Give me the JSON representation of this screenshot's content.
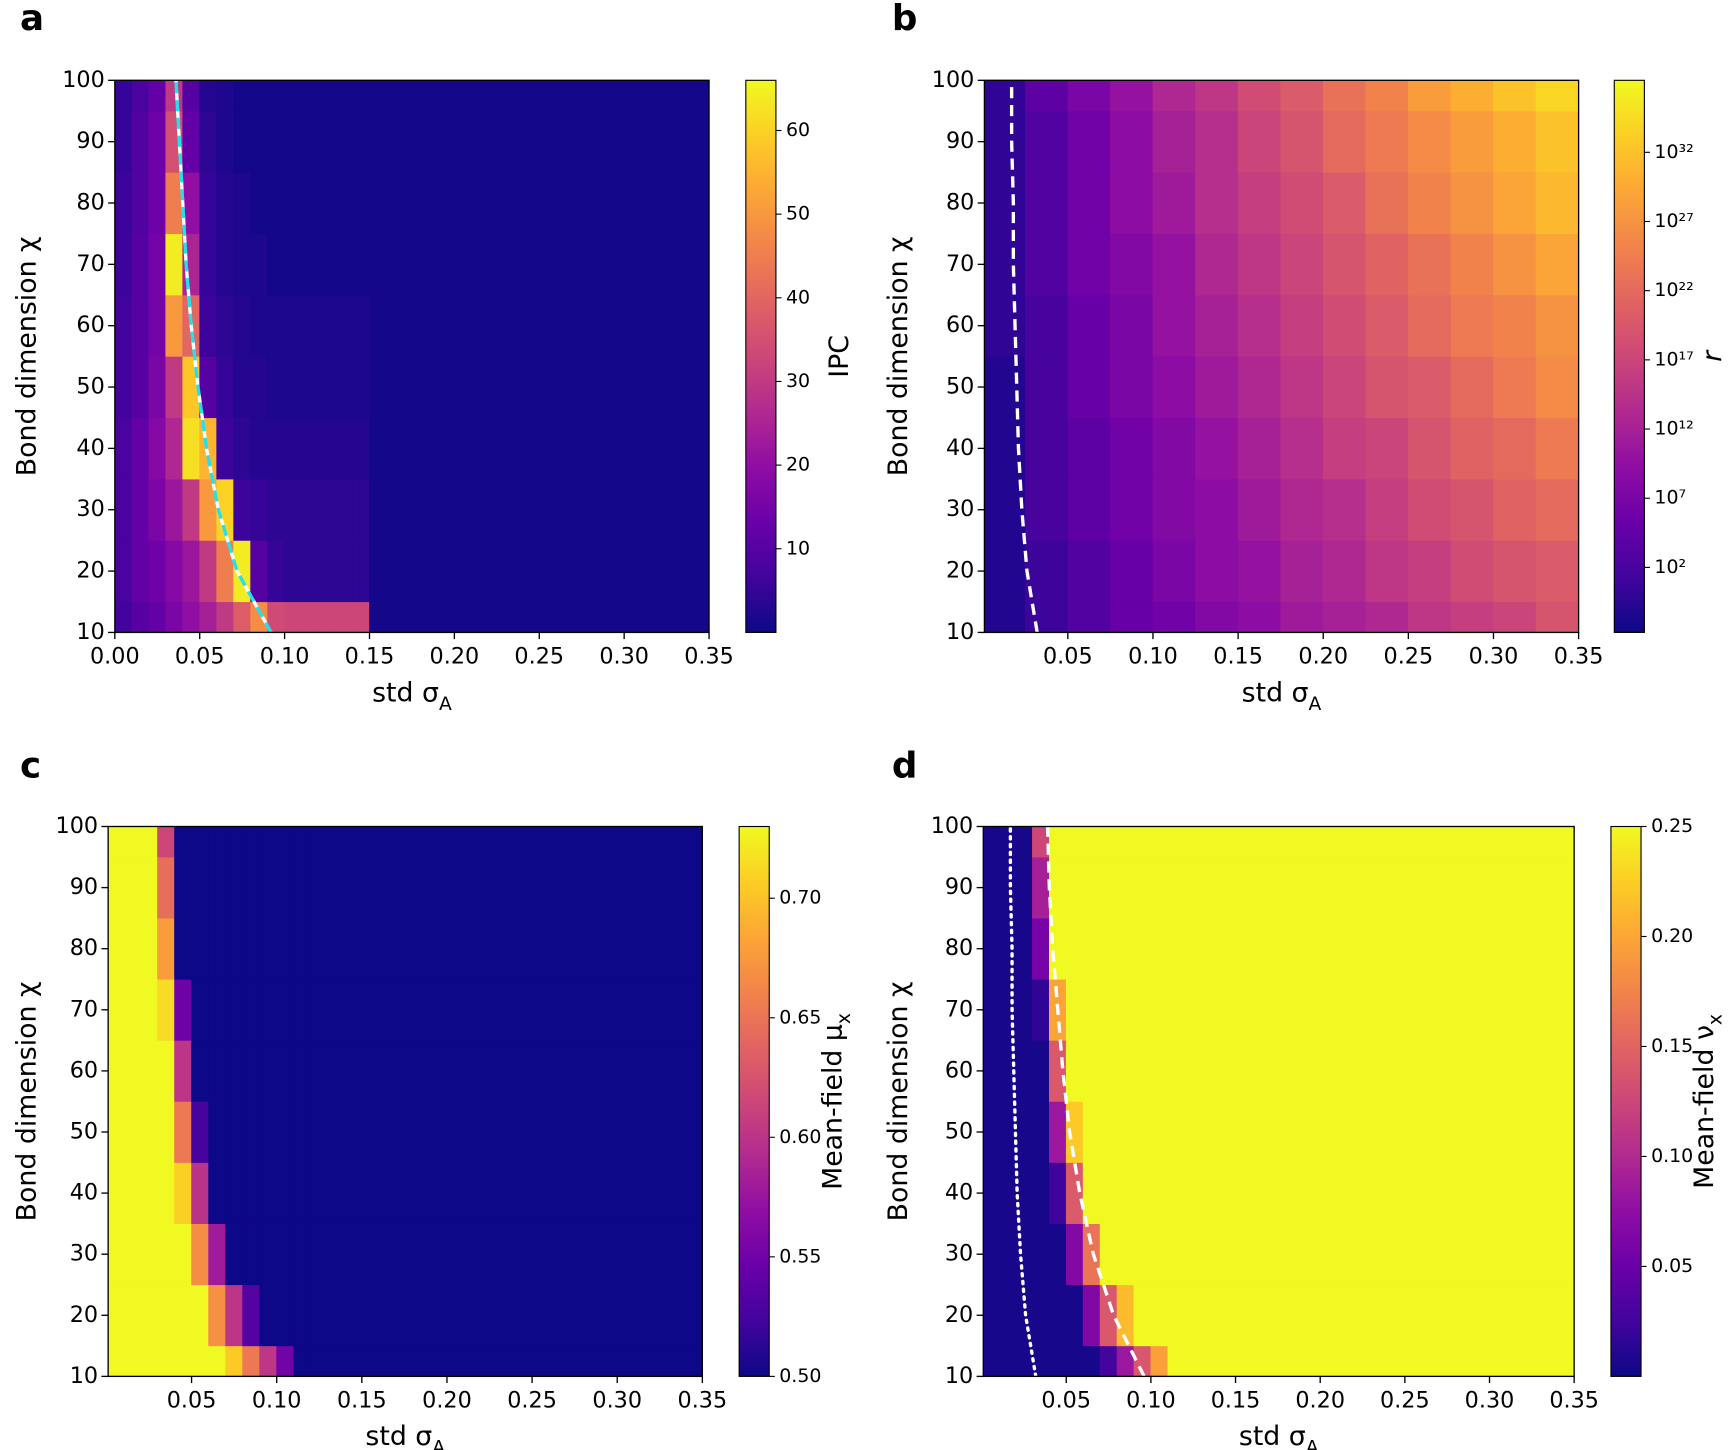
{
  "chart_data": [
    {
      "type": "heatmap",
      "panel": "a",
      "xlabel": "std σ_A",
      "ylabel": "Bond dimension χ",
      "colormap": "plasma",
      "xlim": [
        0,
        0.35
      ],
      "xticks": [
        {
          "value": 0,
          "label": "0.00"
        },
        0.05,
        {
          "value": 0.1,
          "label": "0.10"
        },
        0.15,
        {
          "value": 0.2,
          "label": "0.20"
        },
        0.25,
        {
          "value": 0.3,
          "label": "0.30"
        },
        0.35
      ],
      "ylim": [
        10,
        100
      ],
      "yticks": [
        10,
        20,
        30,
        40,
        50,
        60,
        70,
        80,
        90,
        100
      ],
      "y": [
        10,
        20,
        30,
        40,
        50,
        60,
        70,
        80,
        90,
        100
      ],
      "xbins": [
        0,
        0.01,
        0.02,
        0.03,
        0.04,
        0.05,
        0.06,
        0.07,
        0.08,
        0.09,
        0.1,
        0.11,
        0.12,
        0.13,
        0.14,
        0.15,
        0.35
      ],
      "z": [
        [
          7,
          10,
          12,
          16,
          20,
          24,
          30,
          38,
          48,
          34,
          33,
          33,
          33,
          33,
          33,
          1
        ],
        [
          8,
          12,
          14,
          18,
          22,
          30,
          45,
          64,
          10,
          5,
          4,
          4,
          4,
          4,
          4,
          1
        ],
        [
          8,
          12,
          16,
          22,
          30,
          50,
          60,
          6,
          5,
          4,
          4,
          4,
          4,
          4,
          4,
          1
        ],
        [
          8,
          12,
          18,
          26,
          62,
          55,
          6,
          4,
          3,
          3,
          3,
          3,
          3,
          3,
          3,
          1
        ],
        [
          7,
          10,
          16,
          30,
          58,
          10,
          5,
          3,
          3,
          2,
          2,
          2,
          2,
          2,
          2,
          1
        ],
        [
          7,
          10,
          15,
          50,
          40,
          6,
          4,
          3,
          2,
          2,
          2,
          2,
          2,
          2,
          2,
          1
        ],
        [
          6,
          10,
          15,
          64,
          25,
          5,
          3,
          2,
          2,
          1,
          1,
          1,
          1,
          1,
          1,
          1
        ],
        [
          6,
          9,
          14,
          45,
          20,
          5,
          3,
          2,
          1,
          1,
          1,
          1,
          1,
          1,
          1,
          1
        ],
        [
          5,
          9,
          14,
          35,
          12,
          4,
          2,
          1,
          1,
          1,
          1,
          1,
          1,
          1,
          1,
          1
        ],
        [
          5,
          8,
          12,
          30,
          10,
          3,
          2,
          1,
          1,
          1,
          1,
          1,
          1,
          1,
          1,
          1
        ]
      ],
      "clim": [
        0,
        66
      ],
      "cticks": [
        10,
        20,
        30,
        40,
        50,
        60
      ],
      "clabel": "IPC",
      "lines": [
        {
          "style": "dashed",
          "color": "#22e0ee",
          "x": [
            0.092,
            0.072,
            0.061,
            0.054,
            0.049,
            0.045,
            0.042,
            0.04,
            0.038,
            0.036
          ],
          "y": [
            10,
            20,
            30,
            40,
            50,
            60,
            70,
            80,
            90,
            100
          ]
        }
      ]
    },
    {
      "type": "heatmap",
      "panel": "b",
      "xlabel": "std σ_A",
      "ylabel": "Bond dimension χ",
      "colormap": "plasma",
      "xlim": [
        0.001,
        0.35
      ],
      "xticks": [
        0.05,
        {
          "value": 0.1,
          "label": "0.10"
        },
        0.15,
        {
          "value": 0.2,
          "label": "0.20"
        },
        0.25,
        {
          "value": 0.3,
          "label": "0.30"
        },
        0.35
      ],
      "ylim": [
        10,
        100
      ],
      "yticks": [
        10,
        20,
        30,
        40,
        50,
        60,
        70,
        80,
        90,
        100
      ],
      "y": [
        10,
        20,
        30,
        40,
        50,
        60,
        70,
        80,
        90,
        100
      ],
      "xbins": [
        0.001,
        0.025,
        0.05,
        0.075,
        0.1,
        0.125,
        0.15,
        0.175,
        0.2,
        0.225,
        0.25,
        0.275,
        0.3,
        0.325,
        0.35
      ],
      "z": [
        [
          0.1,
          10.0,
          1000.0,
          100000.0,
          1000000.0,
          100000000.0,
          1000000000.0,
          100000000000.0,
          1000000000000.0,
          10000000000000.0,
          1000000000000000.0,
          1e+16,
          1e+17,
          1e+19
        ],
        [
          0.1,
          10.0,
          1000.0,
          100000.0,
          10000000.0,
          1000000000.0,
          10000000000.0,
          1000000000000.0,
          10000000000000.0,
          1000000000000000.0,
          1e+16,
          1e+18,
          1e+19,
          1e+20
        ],
        [
          0.1,
          100.0,
          10000.0,
          1000000.0,
          100000000.0,
          1000000000.0,
          100000000000.0,
          10000000000000.0,
          100000000000000.0,
          1e+16,
          1e+18,
          1e+19,
          1e+21,
          1e+22
        ],
        [
          0.1,
          100.0,
          10000.0,
          1000000.0,
          100000000.0,
          10000000000.0,
          1000000000000.0,
          100000000000000.0,
          1e+16,
          1e+17,
          1e+19,
          1e+21,
          1e+22,
          1e+24
        ],
        [
          0.1,
          100.0,
          100000.0,
          10000000.0,
          1000000000.0,
          100000000000.0,
          10000000000000.0,
          1000000000000000.0,
          1e+17,
          1e+19,
          1e+20,
          1e+22,
          1e+24,
          1e+26
        ],
        [
          1.0,
          100.0,
          100000.0,
          10000000.0,
          10000000000.0,
          1000000000000.0,
          100000000000000.0,
          1e+16,
          1e+18,
          1e+20,
          1e+22,
          1e+24,
          1e+25,
          1e+27
        ],
        [
          1.0,
          1000.0,
          1000000.0,
          100000000.0,
          10000000000.0,
          10000000000000.0,
          1000000000000000.0,
          1e+17,
          1e+19,
          1e+21,
          1e+23,
          1e+25,
          1e+27,
          1e+29
        ],
        [
          1.0,
          1000.0,
          1000000.0,
          1000000000.0,
          100000000000.0,
          100000000000000.0,
          1e+16,
          1e+18,
          1e+20,
          1e+23,
          1e+25,
          1e+27,
          1e+29,
          1e+31
        ],
        [
          1.0,
          1000.0,
          1000000.0,
          1000000000.0,
          1000000000000.0,
          100000000000000.0,
          1e+17,
          1e+19,
          1e+22,
          1e+24,
          1e+26,
          1e+28,
          1e+30,
          1e+32
        ],
        [
          1.0,
          10000.0,
          10000000.0,
          10000000000.0,
          10000000000000.0,
          1000000000000000.0,
          1e+18,
          1e+20,
          1e+23,
          1e+25,
          1e+28,
          1e+30,
          1e+32,
          1e+34
        ]
      ],
      "clim": [
        0.002,
        1.6e+37
      ],
      "cscale": "log",
      "cticks": [
        {
          "value": 100.0,
          "label": "10²"
        },
        {
          "value": 10000000.0,
          "label": "10⁷"
        },
        {
          "value": 1000000000000.0,
          "label": "10¹²"
        },
        {
          "value": 1e+17,
          "label": "10¹⁷"
        },
        {
          "value": 1e+22,
          "label": "10²²"
        },
        {
          "value": 1e+27,
          "label": "10²⁷"
        },
        {
          "value": 1e+32,
          "label": "10³²"
        }
      ],
      "clabel": "r",
      "clabel_italic": true,
      "lines": [
        {
          "style": "dashed",
          "color": "#ffffff",
          "x": [
            0.032,
            0.026,
            0.023,
            0.021,
            0.02,
            0.019,
            0.018,
            0.018,
            0.017,
            0.017
          ],
          "y": [
            10,
            20,
            30,
            40,
            50,
            60,
            70,
            80,
            90,
            100
          ]
        }
      ]
    },
    {
      "type": "heatmap",
      "panel": "c",
      "xlabel": "std σ_A",
      "ylabel": "Bond dimension χ",
      "colormap": "plasma",
      "xlim": [
        0.001,
        0.35
      ],
      "xticks": [
        0.05,
        {
          "value": 0.1,
          "label": "0.10"
        },
        0.15,
        {
          "value": 0.2,
          "label": "0.20"
        },
        0.25,
        {
          "value": 0.3,
          "label": "0.30"
        },
        0.35
      ],
      "ylim": [
        10,
        100
      ],
      "yticks": [
        10,
        20,
        30,
        40,
        50,
        60,
        70,
        80,
        90,
        100
      ],
      "y": [
        10,
        20,
        30,
        40,
        50,
        60,
        70,
        80,
        90,
        100
      ],
      "xbins": [
        0.001,
        0.01,
        0.02,
        0.03,
        0.04,
        0.05,
        0.06,
        0.07,
        0.08,
        0.09,
        0.1,
        0.11,
        0.12,
        0.13,
        0.35
      ],
      "z": [
        [
          0.73,
          0.73,
          0.73,
          0.73,
          0.73,
          0.73,
          0.73,
          0.704,
          0.653,
          0.602,
          0.551,
          0.5,
          0.5,
          0.5
        ],
        [
          0.73,
          0.73,
          0.73,
          0.73,
          0.73,
          0.73,
          0.669,
          0.601,
          0.534,
          0.5,
          0.5,
          0.5,
          0.5,
          0.5
        ],
        [
          0.73,
          0.73,
          0.73,
          0.73,
          0.73,
          0.668,
          0.58,
          0.5,
          0.5,
          0.5,
          0.5,
          0.5,
          0.5,
          0.5
        ],
        [
          0.73,
          0.73,
          0.73,
          0.73,
          0.708,
          0.599,
          0.5,
          0.5,
          0.5,
          0.5,
          0.5,
          0.5,
          0.5,
          0.5
        ],
        [
          0.73,
          0.73,
          0.73,
          0.73,
          0.653,
          0.526,
          0.5,
          0.5,
          0.5,
          0.5,
          0.5,
          0.5,
          0.5,
          0.5
        ],
        [
          0.73,
          0.73,
          0.73,
          0.73,
          0.601,
          0.5,
          0.5,
          0.5,
          0.5,
          0.5,
          0.5,
          0.5,
          0.5,
          0.5
        ],
        [
          0.73,
          0.73,
          0.73,
          0.714,
          0.549,
          0.5,
          0.5,
          0.5,
          0.5,
          0.5,
          0.5,
          0.5,
          0.5,
          0.5
        ],
        [
          0.73,
          0.73,
          0.73,
          0.677,
          0.5,
          0.5,
          0.5,
          0.5,
          0.5,
          0.5,
          0.5,
          0.5,
          0.5,
          0.5
        ],
        [
          0.73,
          0.73,
          0.73,
          0.646,
          0.5,
          0.5,
          0.5,
          0.5,
          0.5,
          0.5,
          0.5,
          0.5,
          0.5,
          0.5
        ],
        [
          0.73,
          0.73,
          0.73,
          0.615,
          0.5,
          0.5,
          0.5,
          0.5,
          0.5,
          0.5,
          0.5,
          0.5,
          0.5,
          0.5
        ]
      ],
      "clim": [
        0.5,
        0.73
      ],
      "cticks": [
        {
          "value": 0.5,
          "label": "0.50"
        },
        0.55,
        {
          "value": 0.6,
          "label": "0.60"
        },
        0.65,
        {
          "value": 0.7,
          "label": "0.70"
        }
      ],
      "clabel": "Mean-field μ_x",
      "lines": []
    },
    {
      "type": "heatmap",
      "panel": "d",
      "xlabel": "std σ_A",
      "ylabel": "Bond dimension χ",
      "colormap": "plasma",
      "xlim": [
        0.001,
        0.35
      ],
      "xticks": [
        0.05,
        {
          "value": 0.1,
          "label": "0.10"
        },
        0.15,
        {
          "value": 0.2,
          "label": "0.20"
        },
        0.25,
        {
          "value": 0.3,
          "label": "0.30"
        },
        0.35
      ],
      "ylim": [
        10,
        100
      ],
      "yticks": [
        10,
        20,
        30,
        40,
        50,
        60,
        70,
        80,
        90,
        100
      ],
      "y": [
        10,
        20,
        30,
        40,
        50,
        60,
        70,
        80,
        90,
        100
      ],
      "xbins": [
        0.001,
        0.01,
        0.02,
        0.03,
        0.04,
        0.05,
        0.06,
        0.07,
        0.08,
        0.09,
        0.1,
        0.11,
        0.12,
        0.13,
        0.35
      ],
      "z": [
        [
          0.005,
          0.005,
          0.005,
          0.005,
          0.005,
          0.005,
          0.005,
          0.028,
          0.084,
          0.139,
          0.195,
          0.25,
          0.25,
          0.25
        ],
        [
          0.005,
          0.005,
          0.005,
          0.005,
          0.005,
          0.005,
          0.066,
          0.14,
          0.213,
          0.25,
          0.25,
          0.25,
          0.25,
          0.25
        ],
        [
          0.005,
          0.005,
          0.005,
          0.005,
          0.005,
          0.067,
          0.163,
          0.25,
          0.25,
          0.25,
          0.25,
          0.25,
          0.25,
          0.25
        ],
        [
          0.005,
          0.005,
          0.005,
          0.005,
          0.024,
          0.142,
          0.25,
          0.25,
          0.25,
          0.25,
          0.25,
          0.25,
          0.25,
          0.25
        ],
        [
          0.005,
          0.005,
          0.005,
          0.005,
          0.084,
          0.222,
          0.25,
          0.25,
          0.25,
          0.25,
          0.25,
          0.25,
          0.25,
          0.25
        ],
        [
          0.005,
          0.005,
          0.005,
          0.005,
          0.14,
          0.25,
          0.25,
          0.25,
          0.25,
          0.25,
          0.25,
          0.25,
          0.25,
          0.25
        ],
        [
          0.005,
          0.005,
          0.005,
          0.017,
          0.197,
          0.25,
          0.25,
          0.25,
          0.25,
          0.25,
          0.25,
          0.25,
          0.25,
          0.25
        ],
        [
          0.005,
          0.005,
          0.005,
          0.058,
          0.25,
          0.25,
          0.25,
          0.25,
          0.25,
          0.25,
          0.25,
          0.25,
          0.25,
          0.25
        ],
        [
          0.005,
          0.005,
          0.005,
          0.091,
          0.25,
          0.25,
          0.25,
          0.25,
          0.25,
          0.25,
          0.25,
          0.25,
          0.25,
          0.25
        ],
        [
          0.005,
          0.005,
          0.005,
          0.125,
          0.25,
          0.25,
          0.25,
          0.25,
          0.25,
          0.25,
          0.25,
          0.25,
          0.25,
          0.25
        ]
      ],
      "clim": [
        0,
        0.25
      ],
      "cticks": [
        0.05,
        {
          "value": 0.1,
          "label": "0.10"
        },
        0.15,
        {
          "value": 0.2,
          "label": "0.20"
        },
        0.25
      ],
      "clabel": "Mean-field ν_x",
      "lines": [
        {
          "style": "dotted",
          "color": "#ffffff",
          "x": [
            0.032,
            0.026,
            0.023,
            0.021,
            0.02,
            0.019,
            0.018,
            0.018,
            0.017,
            0.017
          ],
          "y": [
            10,
            20,
            30,
            40,
            50,
            60,
            70,
            80,
            90,
            100
          ]
        },
        {
          "style": "dashed",
          "color": "#ffffff",
          "x": [
            0.096,
            0.078,
            0.066,
            0.058,
            0.052,
            0.048,
            0.045,
            0.042,
            0.04,
            0.039
          ],
          "y": [
            10,
            20,
            30,
            40,
            50,
            60,
            70,
            80,
            90,
            100
          ]
        }
      ]
    }
  ]
}
